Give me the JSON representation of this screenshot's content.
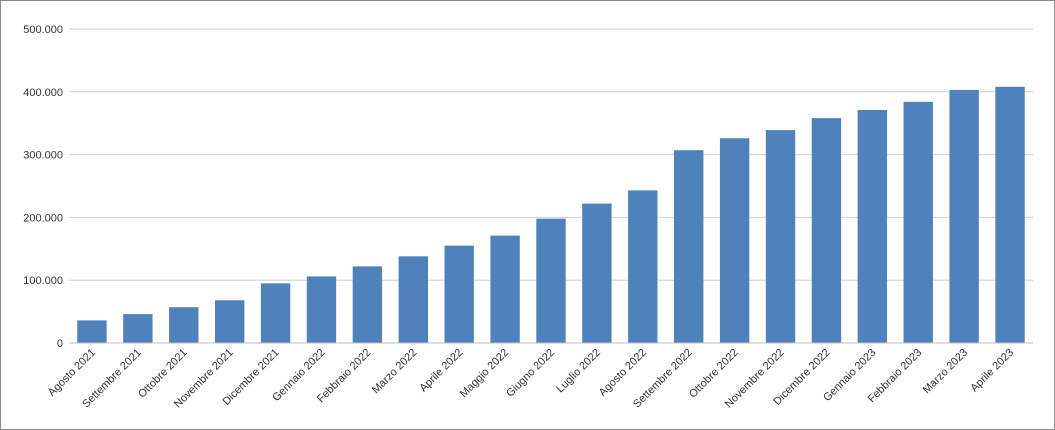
{
  "chart_data": {
    "type": "bar",
    "title": "",
    "xlabel": "",
    "ylabel": "",
    "ylim": [
      0,
      500000
    ],
    "yticks": [
      0,
      100000,
      200000,
      300000,
      400000,
      500000
    ],
    "ytick_labels": [
      "0",
      "100.000",
      "200.000",
      "300.000",
      "400.000",
      "500.000"
    ],
    "grid": true,
    "legend": "none",
    "bar_color": "#4f81bd",
    "categories": [
      "Agosto 2021",
      "Settembre 2021",
      "Ottobre 2021",
      "Novembre 2021",
      "Dicembre 2021",
      "Gennaio 2022",
      "Febbraio 2022",
      "Marzo 2022",
      "Aprile 2022",
      "Maggio 2022",
      "Giugno 2022",
      "Luglio 2022",
      "Agosto 2022",
      "Settembre 2022",
      "Ottobre 2022",
      "Novembre 2022",
      "Dicembre 2022",
      "Gennaio 2023",
      "Febbraio 2023",
      "Marzo 2023",
      "Aprile 2023"
    ],
    "values": [
      36000,
      46000,
      57000,
      68000,
      95000,
      106000,
      122000,
      138000,
      155000,
      171000,
      198000,
      222000,
      243000,
      307000,
      326000,
      339000,
      358000,
      371000,
      384000,
      403000,
      408000
    ]
  }
}
